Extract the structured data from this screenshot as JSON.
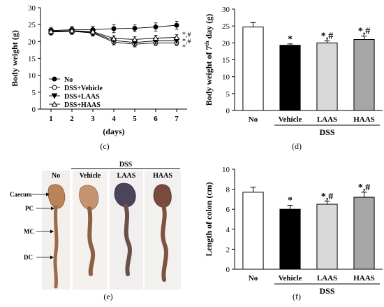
{
  "charts": [
    {
      "panel_label": "(c)",
      "chart_data": {
        "type": "line",
        "title": "",
        "xlabel": "(days)",
        "ylabel": "Body weight (g)",
        "x": [
          1,
          2,
          3,
          4,
          5,
          6,
          7
        ],
        "xlim": [
          0.5,
          7.5
        ],
        "ylim": [
          0,
          30
        ],
        "yticks": [
          0,
          5,
          10,
          15,
          20,
          25,
          30
        ],
        "xticks": [
          "1",
          "2",
          "3",
          "4",
          "5",
          "6",
          "7"
        ],
        "legend_position": "bottom-left",
        "series": [
          {
            "name": "No",
            "marker": "filled-circle",
            "values": [
              23.2,
              23.5,
              23.5,
              23.8,
              23.9,
              24.3,
              24.8
            ],
            "errors": [
              1.0,
              1.0,
              1.0,
              1.2,
              1.0,
              1.2,
              1.2
            ]
          },
          {
            "name": "DSS+Vehicle",
            "marker": "open-circle",
            "values": [
              22.8,
              23.0,
              22.5,
              19.8,
              19.2,
              19.6,
              19.6
            ],
            "errors": [
              0.9,
              0.9,
              0.9,
              0.8,
              0.8,
              0.8,
              0.8
            ]
          },
          {
            "name": "DSS+LAAS",
            "marker": "filled-triangle-down",
            "values": [
              22.9,
              23.1,
              22.7,
              20.3,
              19.7,
              20.2,
              20.3
            ],
            "errors": [
              0.9,
              0.9,
              0.9,
              0.8,
              0.8,
              0.8,
              0.8
            ]
          },
          {
            "name": "DSS+HAAS",
            "marker": "open-triangle-up",
            "values": [
              23.0,
              23.2,
              22.9,
              20.9,
              20.6,
              21.0,
              21.2
            ],
            "errors": [
              0.9,
              0.9,
              0.9,
              0.8,
              0.8,
              0.8,
              0.8
            ]
          }
        ],
        "annotations": [
          "*,#",
          "*,#",
          "*"
        ]
      }
    },
    {
      "panel_label": "(d)",
      "chart_data": {
        "type": "bar",
        "title": "",
        "xlabel": "",
        "ylabel_pre": "Body weight of 7",
        "ylabel_sup": "th",
        "ylabel_post": " day (g)",
        "group_label": "DSS",
        "categories": [
          "No",
          "Vehicle",
          "LAAS",
          "HAAS"
        ],
        "values": [
          24.7,
          19.3,
          20.0,
          21.0
        ],
        "errors": [
          1.3,
          0.4,
          0.6,
          1.0
        ],
        "colors": [
          "#ffffff",
          "#000000",
          "#d9d9d9",
          "#a6a6a6"
        ],
        "bar_annotations": [
          "",
          "*",
          "*,#",
          "*,#"
        ],
        "ylim": [
          0,
          30
        ],
        "yticks": [
          0,
          5,
          10,
          15,
          20,
          25,
          30
        ]
      }
    },
    {
      "panel_label": "(f)",
      "chart_data": {
        "type": "bar",
        "title": "",
        "xlabel": "",
        "ylabel": "Length of colon (cm)",
        "group_label": "DSS",
        "categories": [
          "No",
          "Vehicle",
          "LAAS",
          "HAAS"
        ],
        "values": [
          7.7,
          6.0,
          6.5,
          7.2
        ],
        "errors": [
          0.5,
          0.4,
          0.3,
          0.5
        ],
        "colors": [
          "#ffffff",
          "#000000",
          "#d9d9d9",
          "#a6a6a6"
        ],
        "bar_annotations": [
          "",
          "*",
          "*,#",
          "*,#"
        ],
        "ylim": [
          0,
          10
        ],
        "yticks": [
          0,
          2,
          4,
          6,
          8,
          10
        ]
      }
    }
  ],
  "photo_panel": {
    "panel_label": "(e)",
    "group_label": "DSS",
    "columns": [
      "No",
      "Vehicle",
      "LAAS",
      "HAAS"
    ],
    "segment_labels": [
      "Caecum",
      "PC",
      "MC",
      "DC"
    ]
  }
}
